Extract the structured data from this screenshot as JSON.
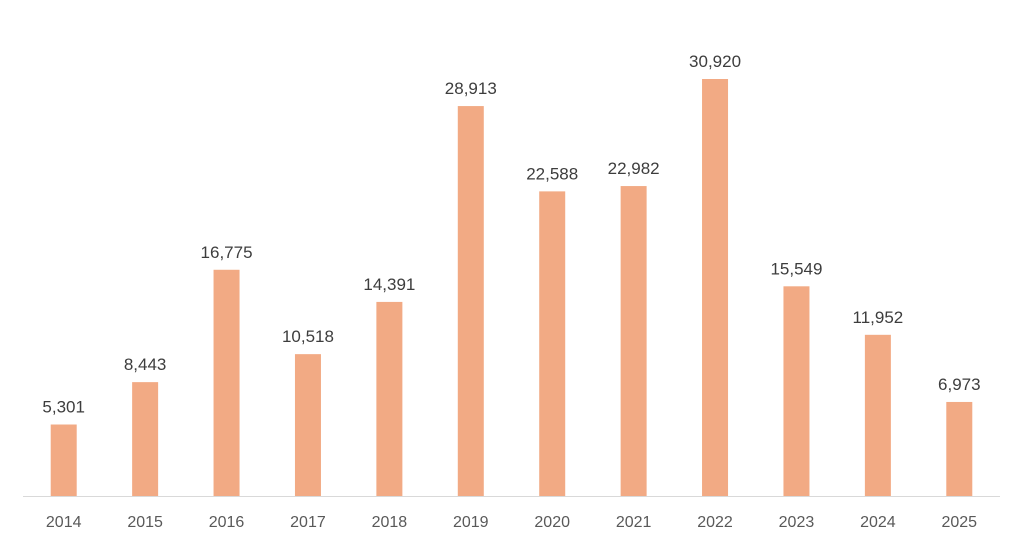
{
  "chart_data": {
    "type": "bar",
    "categories": [
      "2014",
      "2015",
      "2016",
      "2017",
      "2018",
      "2019",
      "2020",
      "2021",
      "2022",
      "2023",
      "2024",
      "2025"
    ],
    "values": [
      5301,
      8443,
      16775,
      10518,
      14391,
      28913,
      22588,
      22982,
      30920,
      15549,
      11952,
      6973
    ],
    "data_labels": [
      "5,301",
      "8,443",
      "16,775",
      "10,518",
      "14,391",
      "28,913",
      "22,588",
      "22,982",
      "30,920",
      "15,549",
      "11,952",
      "6,973"
    ],
    "title": "",
    "xlabel": "",
    "ylabel": "",
    "ylim": [
      0,
      30920
    ],
    "grid": false,
    "legend": "none",
    "colors": {
      "bar": "#f2aa84",
      "axis": "#d9d9d9",
      "label": "#3d3d3d",
      "tick": "#595959"
    }
  }
}
